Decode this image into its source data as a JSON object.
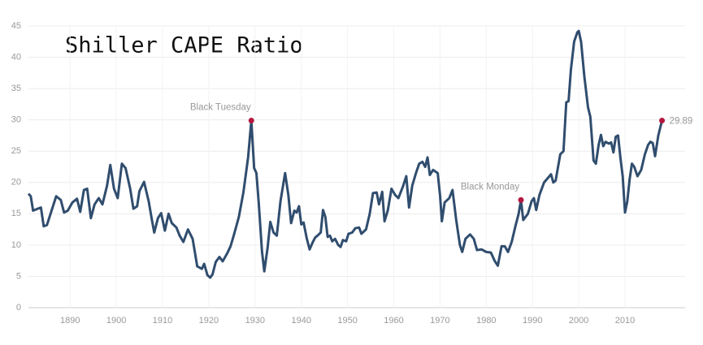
{
  "chart_data": {
    "type": "line",
    "title": "Shiller CAPE Ratio",
    "color": "#304d6e",
    "marker_color": "#b5173f",
    "x": [
      1881,
      1881.5,
      1882,
      1883,
      1883.7,
      1884.3,
      1885,
      1886,
      1887,
      1888,
      1888.7,
      1889.5,
      1890.5,
      1891.5,
      1892.2,
      1893,
      1893.7,
      1894.5,
      1895.3,
      1896.2,
      1897,
      1898,
      1898.7,
      1899.5,
      1900.3,
      1901.2,
      1902,
      1903,
      1903.7,
      1904.5,
      1905,
      1906,
      1907,
      1907.7,
      1908.2,
      1909,
      1909.7,
      1910.5,
      1911.3,
      1912,
      1913,
      1913.7,
      1914.5,
      1915.5,
      1916.5,
      1917.5,
      1918.5,
      1919,
      1919.7,
      1920.3,
      1920.8,
      1921.5,
      1922.3,
      1923,
      1924,
      1924.7,
      1925.5,
      1926.5,
      1927.5,
      1928.5,
      1929.2,
      1929.8,
      1930.3,
      1930.8,
      1931.5,
      1932,
      1932.7,
      1933.3,
      1934,
      1934.7,
      1935.5,
      1936.5,
      1937.2,
      1937.8,
      1938.5,
      1939,
      1939.5,
      1940,
      1940.5,
      1941.2,
      1941.8,
      1942.5,
      1943,
      1943.5,
      1944.2,
      1944.7,
      1945.2,
      1945.7,
      1946.2,
      1946.7,
      1947.3,
      1948,
      1948.5,
      1949,
      1949.7,
      1950.2,
      1951,
      1951.7,
      1952.5,
      1953,
      1954,
      1954.8,
      1955.5,
      1956.3,
      1956.8,
      1957.5,
      1958,
      1958.7,
      1959.5,
      1960.3,
      1961,
      1962,
      1962.7,
      1963.3,
      1964,
      1964.8,
      1965.5,
      1966.2,
      1966.8,
      1967.3,
      1967.8,
      1968.5,
      1969.5,
      1970,
      1970.4,
      1971,
      1972,
      1972.7,
      1973.5,
      1974.3,
      1974.8,
      1975.5,
      1976.5,
      1977.3,
      1978,
      1979,
      1980,
      1981,
      1981.8,
      1982.5,
      1983.3,
      1984,
      1984.7,
      1985.5,
      1986.3,
      1987,
      1987.5,
      1988,
      1989,
      1989.8,
      1990.3,
      1990.8,
      1991.5,
      1992.5,
      1994,
      1994.5,
      1995,
      1996,
      1996.7,
      1997.3,
      1997.8,
      1998.3,
      1999,
      1999.7,
      2000,
      2000.5,
      2001.2,
      2002,
      2002.5,
      2003.2,
      2003.7,
      2004.3,
      2004.8,
      2005.3,
      2005.8,
      2006.5,
      2007,
      2007.5,
      2008,
      2008.5,
      2009,
      2009.5,
      2010,
      2010.5,
      2011,
      2011.5,
      2012,
      2012.7,
      2013.5,
      2014.3,
      2015,
      2015.5,
      2016,
      2016.5,
      2017.2,
      2018
    ],
    "values": [
      18.2,
      17.8,
      15.5,
      15.8,
      16,
      13,
      13.2,
      15.5,
      17.8,
      17.2,
      15.2,
      15.5,
      16.8,
      17.4,
      15.3,
      18.8,
      19,
      14.3,
      16.5,
      17.5,
      16.5,
      19.5,
      22.8,
      19,
      17.5,
      23,
      22.3,
      19,
      15.8,
      16.2,
      18.6,
      20.1,
      17,
      14,
      12,
      14.3,
      15.1,
      12.3,
      15,
      13.5,
      12.8,
      11.5,
      10.5,
      12.5,
      11,
      6.6,
      6.2,
      7,
      5.2,
      4.8,
      5.3,
      7.3,
      8.1,
      7.4,
      8.7,
      9.8,
      11.8,
      14.5,
      18.5,
      24,
      29.9,
      22.3,
      21.5,
      16.7,
      9,
      5.8,
      9.5,
      13.7,
      12,
      11.5,
      17,
      21.5,
      18,
      13.5,
      15.5,
      15.2,
      16.2,
      13.3,
      13.6,
      11,
      9.3,
      10.5,
      11.2,
      11.5,
      12,
      15.6,
      14.5,
      11.3,
      11.5,
      10.6,
      11,
      10,
      9.7,
      10.8,
      10.6,
      11.8,
      12,
      12.7,
      12.8,
      11.8,
      12.5,
      15,
      18.3,
      18.4,
      16.5,
      18.5,
      13.8,
      15.5,
      19,
      18,
      17.5,
      19.4,
      21,
      16,
      19.5,
      21.5,
      23,
      23.3,
      22.5,
      24,
      21.2,
      22,
      21.5,
      18,
      13.8,
      16.8,
      17.5,
      18.8,
      14,
      10,
      8.9,
      11,
      11.7,
      11,
      9.2,
      9.3,
      8.9,
      8.8,
      7.5,
      6.7,
      9.8,
      9.8,
      8.9,
      10.5,
      13,
      15,
      17.2,
      14,
      15,
      17,
      17.5,
      15.6,
      18,
      20,
      21.3,
      20,
      20.3,
      24.5,
      25,
      32.8,
      33,
      38,
      42.5,
      44,
      44.2,
      42.5,
      37,
      32,
      30.5,
      23.5,
      23,
      26,
      27.6,
      25.8,
      26.5,
      26.2,
      26.4,
      24.8,
      27.3,
      27.5,
      24,
      21,
      15.2,
      17,
      20.5,
      23,
      22.5,
      21,
      22,
      24.5,
      26,
      26.5,
      26.3,
      24.2,
      27.5,
      29.89
    ],
    "annotations": [
      {
        "label": "Black Tuesday",
        "x": 1929.2,
        "y": 29.9
      },
      {
        "label": "Black Monday",
        "x": 1987.5,
        "y": 17.2
      },
      {
        "label": "29.89",
        "x": 2018,
        "y": 29.89
      }
    ],
    "xlim": [
      1881,
      2023
    ],
    "ylim": [
      0,
      45
    ],
    "xticks": [
      1890,
      1900,
      1910,
      1920,
      1930,
      1940,
      1950,
      1960,
      1970,
      1980,
      1990,
      2000,
      2010
    ],
    "yticks": [
      0,
      5,
      10,
      15,
      20,
      25,
      30,
      35,
      40,
      45
    ],
    "grid": true
  }
}
